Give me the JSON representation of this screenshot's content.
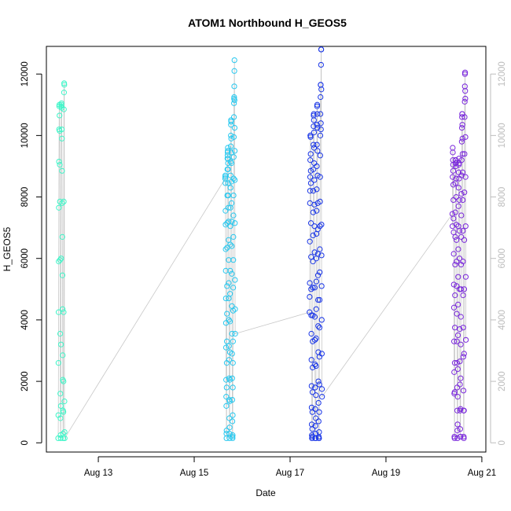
{
  "chart_data": {
    "type": "scatter",
    "title": "ATOM1 Northbound H_GEOS5",
    "xlabel": "Date",
    "ylabel": "H_GEOS5",
    "xlim": [
      "2016-08-11T22:00",
      "2016-08-21T02:00"
    ],
    "ylim": [
      -300,
      12900
    ],
    "x_ticks": [
      {
        "label": "Aug 13",
        "value": "2016-08-13T00:00"
      },
      {
        "label": "Aug 15",
        "value": "2016-08-15T00:00"
      },
      {
        "label": "Aug 17",
        "value": "2016-08-17T00:00"
      },
      {
        "label": "Aug 19",
        "value": "2016-08-19T00:00"
      },
      {
        "label": "Aug 21",
        "value": "2016-08-21T00:00"
      }
    ],
    "y_ticks": [
      "0",
      "2000",
      "4000",
      "6000",
      "8000",
      "10000",
      "12000"
    ],
    "y_ticks_right": [
      "0",
      "2000",
      "4000",
      "6000",
      "8000",
      "10000",
      "12000"
    ],
    "grid": false,
    "connector_color": "#c8c8c8",
    "point_colors": [
      "#3ff5c8",
      "#28c8ef",
      "#1a36e6",
      "#7a28dc"
    ],
    "series": [
      {
        "start": "2016-08-12T03:55",
        "end": "2016-08-12T07:10",
        "values": [
          150,
          900,
          2600,
          4250,
          5900,
          7650,
          9150,
          10200,
          10950,
          11000,
          10650,
          10150,
          9050,
          7850,
          5950,
          3550,
          1600,
          800,
          250,
          150,
          1200,
          3200,
          6000,
          10950,
          11000,
          11050,
          10900,
          10200,
          9900,
          8850,
          7800,
          6700,
          5450,
          4350,
          2850,
          2050,
          1050,
          300,
          150,
          1000,
          2000,
          4250,
          7850,
          10850,
          11400,
          11700,
          11650,
          1350,
          350,
          150
        ]
      },
      {
        "start": "2016-08-15T15:30",
        "end": "2016-08-15T20:30",
        "values": [
          8600,
          8650,
          8700,
          8450,
          7550,
          7100,
          6300,
          5600,
          4700,
          3900,
          3100,
          2050,
          1500,
          1200,
          300,
          150,
          400,
          1800,
          2600,
          3300,
          4200,
          5100,
          6350,
          7150,
          8050,
          8900,
          9250,
          9350,
          9450,
          9500,
          9600,
          9250,
          9100,
          8900,
          8450,
          8050,
          7650,
          7200,
          6600,
          5950,
          5200,
          4700,
          4000,
          3150,
          2700,
          2100,
          1400,
          800,
          300,
          150,
          500,
          1350,
          2050,
          2950,
          3950,
          4850,
          5600,
          6450,
          7050,
          7650,
          8300,
          8700,
          9150,
          9650,
          10000,
          10350,
          10500,
          10450,
          9900,
          9450,
          9100,
          8500,
          7800,
          7200,
          6400,
          5500,
          4450,
          3550,
          2900,
          2100,
          1400,
          700,
          200,
          150,
          250,
          900,
          1800,
          2600,
          3300,
          4300,
          5050,
          5950,
          6700,
          7400,
          8050,
          8600,
          9300,
          9950,
          10600,
          11050,
          11200,
          11250,
          11600,
          12100,
          12450,
          11150,
          10250,
          9500,
          8550,
          7150,
          5300,
          4350,
          3550
        ]
      },
      {
        "start": "2016-08-17T09:45",
        "end": "2016-08-17T16:00",
        "values": [
          4250,
          4750,
          5200,
          6550,
          7800,
          8200,
          8650,
          9200,
          10000,
          10000,
          9950,
          9400,
          8850,
          8450,
          7150,
          6050,
          5000,
          4150,
          3550,
          2700,
          1850,
          1150,
          600,
          250,
          150,
          150,
          200,
          450,
          1000,
          1650,
          2450,
          3300,
          4150,
          5050,
          5900,
          6750,
          7500,
          8200,
          8900,
          9700,
          10300,
          10650,
          10700,
          10500,
          10100,
          9600,
          9100,
          8550,
          7750,
          7050,
          6200,
          5050,
          4100,
          3350,
          2550,
          1800,
          1100,
          550,
          150,
          150,
          150,
          300,
          800,
          1550,
          2500,
          3400,
          4350,
          5250,
          6000,
          6800,
          7550,
          8250,
          9000,
          9700,
          10350,
          10950,
          11000,
          10700,
          10250,
          9500,
          8700,
          7800,
          6950,
          6150,
          5450,
          4650,
          3800,
          2950,
          2000,
          1300,
          700,
          200,
          150,
          150,
          150,
          350,
          1000,
          1900,
          2800,
          3750,
          4650,
          5550,
          6300,
          7050,
          7850,
          8650,
          9350,
          10000,
          10700,
          11250,
          11650,
          11650,
          10400,
          10200,
          12300,
          12800,
          12800,
          11500,
          7100,
          6100,
          5100,
          4000,
          2900,
          1750,
          1500
        ]
      },
      {
        "start": "2016-08-20T09:15",
        "end": "2016-08-20T16:00",
        "values": [
          7450,
          7050,
          8650,
          9600,
          9450,
          9200,
          9050,
          8850,
          8400,
          7900,
          7300,
          6850,
          6150,
          5150,
          4400,
          3300,
          2300,
          1600,
          200,
          150,
          1650,
          2600,
          3750,
          4800,
          5800,
          6700,
          7500,
          8450,
          9100,
          9200,
          9200,
          9100,
          9000,
          8600,
          8000,
          7100,
          6600,
          5900,
          5100,
          4200,
          3300,
          2600,
          1800,
          1050,
          400,
          150,
          600,
          1500,
          2400,
          3500,
          4500,
          5400,
          6300,
          7050,
          7700,
          8300,
          8800,
          9050,
          9250,
          9100,
          8600,
          7900,
          6900,
          6000,
          5000,
          3700,
          2650,
          1900,
          1050,
          450,
          200,
          200,
          1100,
          2100,
          3200,
          4100,
          5000,
          5800,
          6700,
          7400,
          8100,
          8700,
          9200,
          9800,
          10250,
          10600,
          10700,
          10700,
          10350,
          9900,
          9400,
          8800,
          7900,
          6900,
          5900,
          4800,
          3750,
          2800,
          1700,
          1050,
          200,
          150,
          1050,
          2900,
          5000,
          6600,
          8150,
          9400,
          10600,
          11100,
          11600,
          12000,
          12050,
          11450,
          11200,
          9950,
          8650,
          7050,
          5400,
          3350
        ]
      }
    ]
  }
}
